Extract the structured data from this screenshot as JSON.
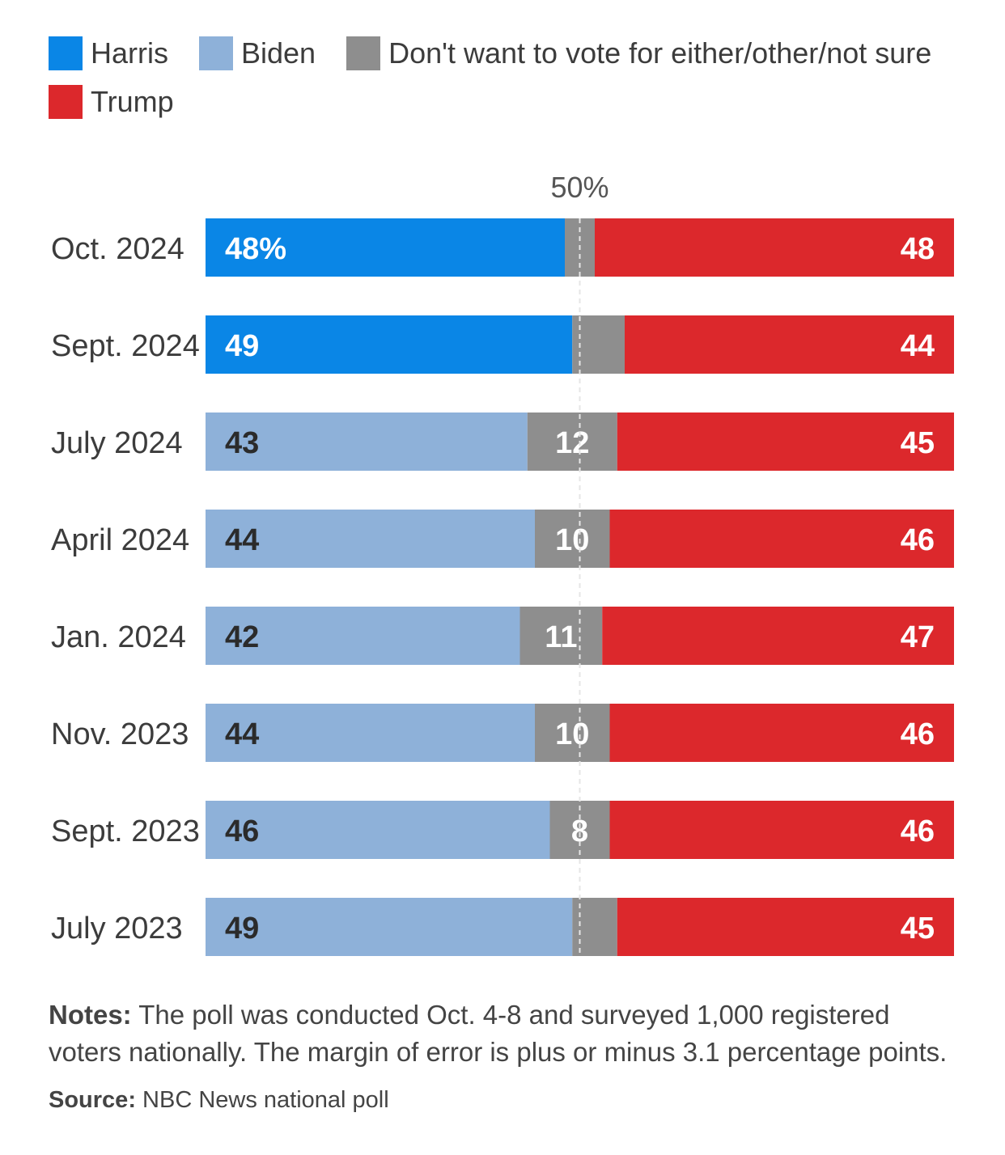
{
  "legend": {
    "harris": "Harris",
    "biden": "Biden",
    "other": "Don't want to vote for either/other/not sure",
    "trump": "Trump"
  },
  "colors": {
    "harris": "#0a86e6",
    "biden": "#8eb1d9",
    "other": "#8e8e8e",
    "trump": "#dc282c"
  },
  "chart_data": {
    "type": "bar",
    "orientation": "horizontal",
    "stacked": true,
    "reference_line": {
      "value": 50,
      "label": "50%"
    },
    "xlim": [
      0,
      100
    ],
    "categories": [
      "Oct. 2024",
      "Sept. 2024",
      "July 2024",
      "April 2024",
      "Jan. 2024",
      "Nov. 2023",
      "Sept. 2023",
      "July 2023"
    ],
    "rows": [
      {
        "label": "Oct. 2024",
        "dem": "Harris",
        "dem_value": 48,
        "dem_text": "48%",
        "other_value": 4,
        "other_text": "",
        "trump_value": 48,
        "trump_text": "48"
      },
      {
        "label": "Sept. 2024",
        "dem": "Harris",
        "dem_value": 49,
        "dem_text": "49",
        "other_value": 7,
        "other_text": "",
        "trump_value": 44,
        "trump_text": "44"
      },
      {
        "label": "July 2024",
        "dem": "Biden",
        "dem_value": 43,
        "dem_text": "43",
        "other_value": 12,
        "other_text": "12",
        "trump_value": 45,
        "trump_text": "45"
      },
      {
        "label": "April 2024",
        "dem": "Biden",
        "dem_value": 44,
        "dem_text": "44",
        "other_value": 10,
        "other_text": "10",
        "trump_value": 46,
        "trump_text": "46"
      },
      {
        "label": "Jan. 2024",
        "dem": "Biden",
        "dem_value": 42,
        "dem_text": "42",
        "other_value": 11,
        "other_text": "11",
        "trump_value": 47,
        "trump_text": "47"
      },
      {
        "label": "Nov. 2023",
        "dem": "Biden",
        "dem_value": 44,
        "dem_text": "44",
        "other_value": 10,
        "other_text": "10",
        "trump_value": 46,
        "trump_text": "46"
      },
      {
        "label": "Sept. 2023",
        "dem": "Biden",
        "dem_value": 46,
        "dem_text": "46",
        "other_value": 8,
        "other_text": "8",
        "trump_value": 46,
        "trump_text": "46"
      },
      {
        "label": "July 2023",
        "dem": "Biden",
        "dem_value": 49,
        "dem_text": "49",
        "other_value": 6,
        "other_text": "",
        "trump_value": 45,
        "trump_text": "45"
      }
    ]
  },
  "notes": {
    "label": "Notes:",
    "text": " The poll was conducted Oct. 4-8 and surveyed 1,000 registered voters nationally. The margin of error is plus or minus 3.1 percentage points."
  },
  "source": {
    "label": "Source:",
    "text": " NBC News national poll"
  }
}
